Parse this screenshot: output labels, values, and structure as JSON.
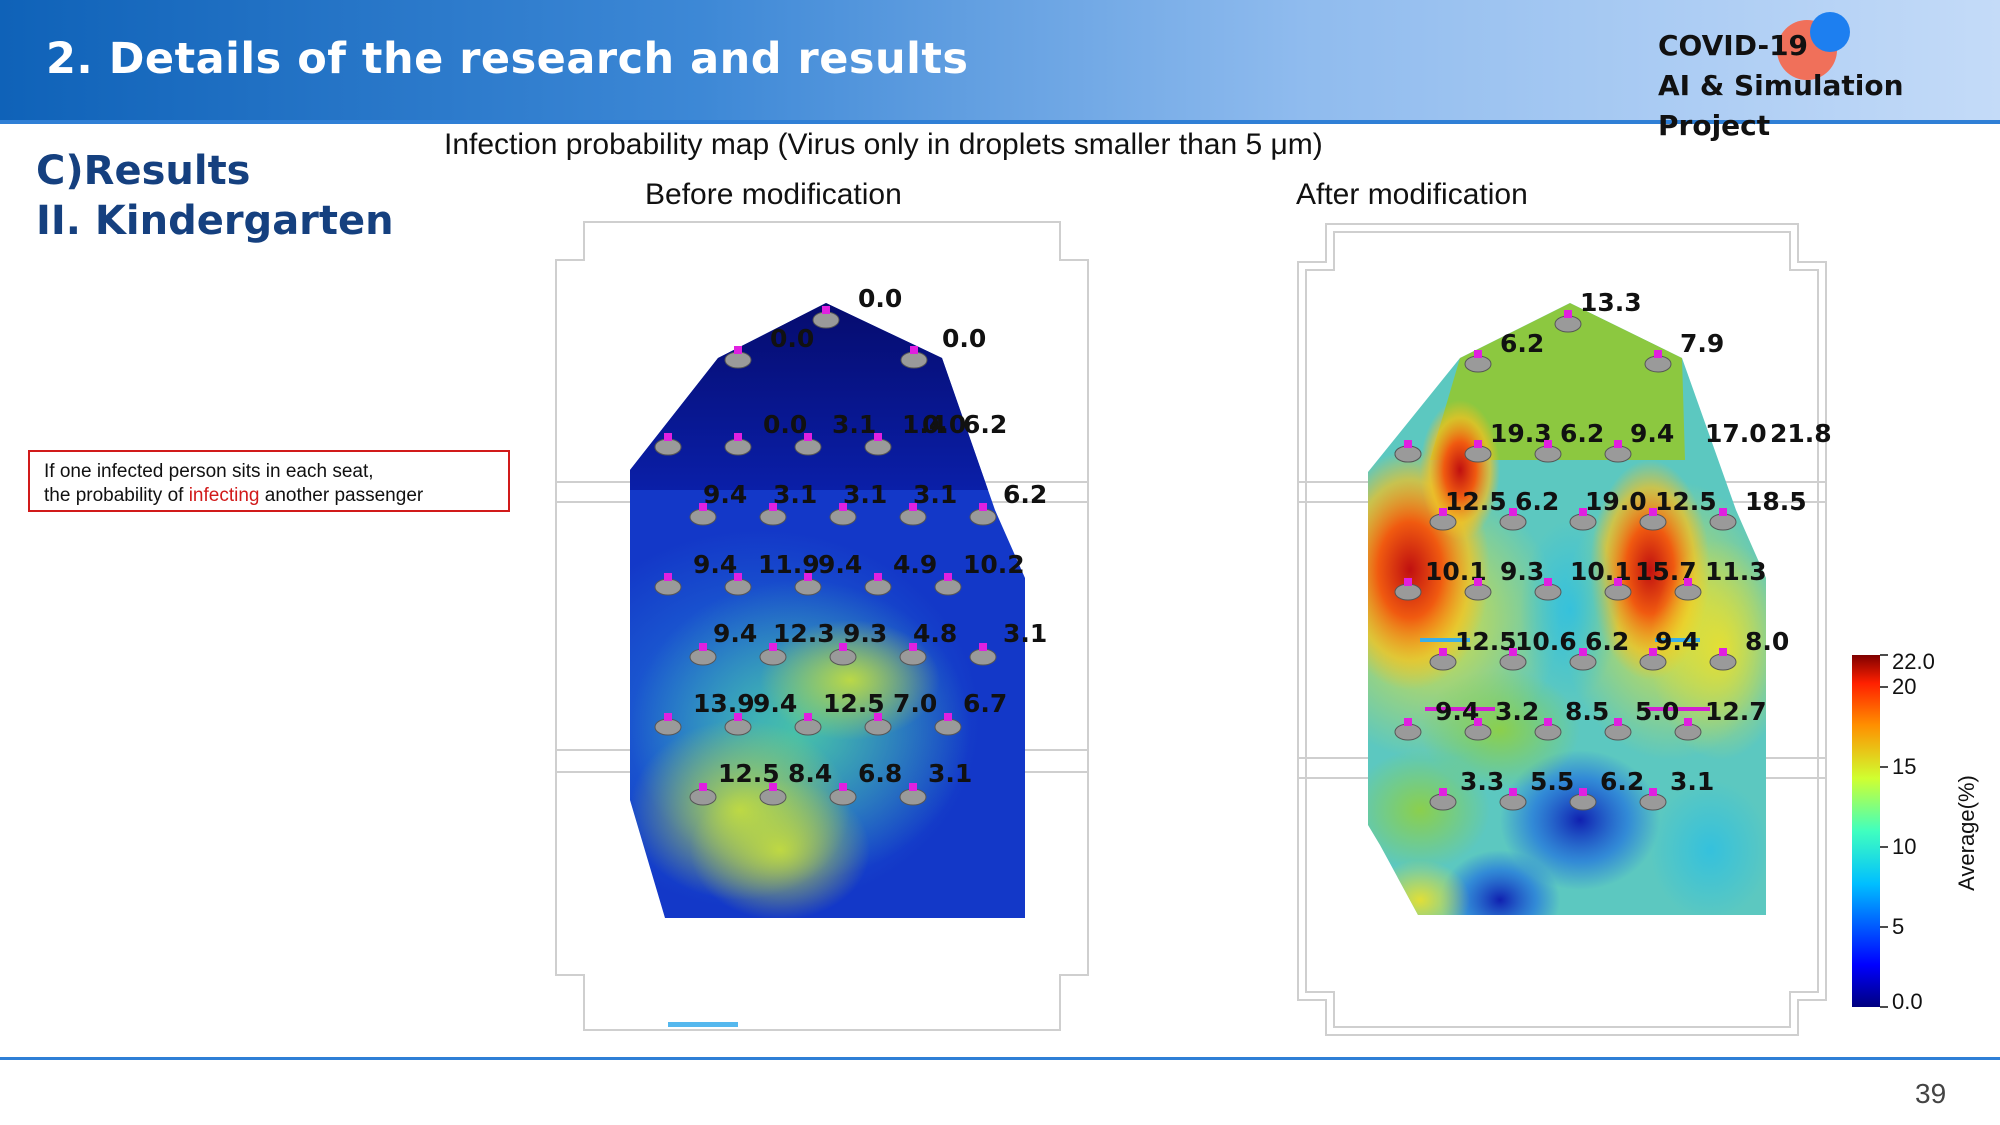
{
  "header": {
    "title": "2. Details of the research and results",
    "brand_line1": "COVID-19",
    "brand_line2": "AI & Simulation Project"
  },
  "section": {
    "line1": "C)Results",
    "line2": "II. Kindergarten"
  },
  "note": {
    "line1": "If one infected person sits in each seat,",
    "line2_pre": "the probability of ",
    "line2_red": "infecting",
    "line2_post": " another passenger"
  },
  "map_title": "Infection probability map (Virus only in droplets smaller than 5 μm)",
  "maps": {
    "before": {
      "label": "Before modification",
      "seats": [
        {
          "value": "0.0"
        },
        {
          "value": "0.0"
        },
        {
          "value": "0.0"
        },
        {
          "value": "0.0"
        },
        {
          "value": "3.1"
        },
        {
          "value": "1.4"
        },
        {
          "value": "0.0"
        },
        {
          "value": "6.2"
        },
        {
          "value": "9.4"
        },
        {
          "value": "3.1"
        },
        {
          "value": "3.1"
        },
        {
          "value": "3.1"
        },
        {
          "value": "6.2"
        },
        {
          "value": "9.4"
        },
        {
          "value": "11.9"
        },
        {
          "value": "9.4"
        },
        {
          "value": "4.9"
        },
        {
          "value": "10.2"
        },
        {
          "value": "9.4"
        },
        {
          "value": "12.3"
        },
        {
          "value": "9.3"
        },
        {
          "value": "4.8"
        },
        {
          "value": "3.1"
        },
        {
          "value": "13.9"
        },
        {
          "value": "9.4"
        },
        {
          "value": "12.5"
        },
        {
          "value": "7.0"
        },
        {
          "value": "6.7"
        },
        {
          "value": "12.5"
        },
        {
          "value": "8.4"
        },
        {
          "value": "6.8"
        },
        {
          "value": "3.1"
        }
      ]
    },
    "after": {
      "label": "After modification",
      "seats": [
        {
          "value": "13.3"
        },
        {
          "value": "6.2"
        },
        {
          "value": "7.9"
        },
        {
          "value": "19.3"
        },
        {
          "value": "6.2"
        },
        {
          "value": "9.4"
        },
        {
          "value": "17.0"
        },
        {
          "value": "21.8"
        },
        {
          "value": "12.5"
        },
        {
          "value": "6.2"
        },
        {
          "value": "19.0"
        },
        {
          "value": "12.5"
        },
        {
          "value": "18.5"
        },
        {
          "value": "10.1"
        },
        {
          "value": "9.3"
        },
        {
          "value": "10.1"
        },
        {
          "value": "15.7"
        },
        {
          "value": "11.3"
        },
        {
          "value": "12.5"
        },
        {
          "value": "10.6"
        },
        {
          "value": "6.2"
        },
        {
          "value": "9.4"
        },
        {
          "value": "8.0"
        },
        {
          "value": "9.4"
        },
        {
          "value": "3.2"
        },
        {
          "value": "8.5"
        },
        {
          "value": "5.0"
        },
        {
          "value": "12.7"
        },
        {
          "value": "3.3"
        },
        {
          "value": "5.5"
        },
        {
          "value": "6.2"
        },
        {
          "value": "3.1"
        }
      ]
    }
  },
  "colorbar": {
    "label": "Average(%)",
    "ticks": [
      "22.0",
      "20",
      "15",
      "10",
      "5",
      "0.0"
    ],
    "range": [
      0,
      22
    ]
  },
  "page_number": "39",
  "colors": {
    "header_blue": "#0f62b8",
    "accent_red": "#d11a1a",
    "section_navy": "#15407f"
  }
}
